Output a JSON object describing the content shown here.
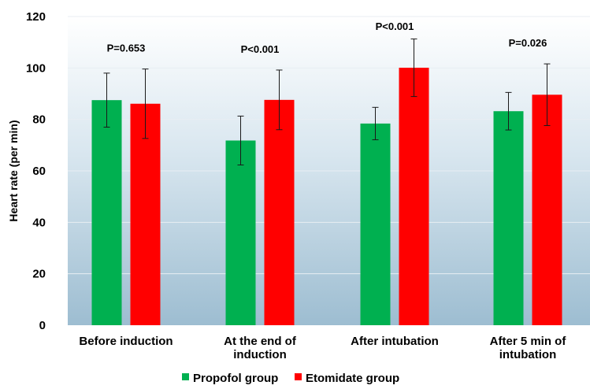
{
  "chart_data": {
    "type": "bar",
    "title": "",
    "xlabel": "",
    "ylabel": "Heart rate (per min)",
    "ylim": [
      0,
      120
    ],
    "yticks": [
      0,
      20,
      40,
      60,
      80,
      100,
      120
    ],
    "grid": true,
    "legend_position": "bottom",
    "categories": [
      [
        "Before induction"
      ],
      [
        "At the end of",
        "induction"
      ],
      [
        "After intubation"
      ],
      [
        "After 5 min of",
        "intubation"
      ]
    ],
    "p_values": [
      "P=0.653",
      "P<0.001",
      "P<0.001",
      "P=0.026"
    ],
    "series": [
      {
        "name": "Propofol group",
        "color": "#00b050",
        "values": [
          87.5,
          71.8,
          78.4,
          83.2
        ],
        "error": [
          10.5,
          9.5,
          6.3,
          7.3
        ]
      },
      {
        "name": "Etomidate group",
        "color": "#ff0000",
        "values": [
          86.1,
          87.6,
          100.1,
          89.6
        ],
        "error": [
          13.5,
          11.6,
          11.2,
          12.0
        ]
      }
    ]
  }
}
